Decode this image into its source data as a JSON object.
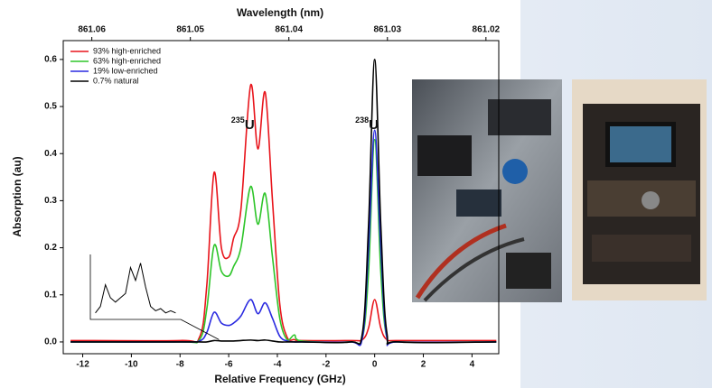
{
  "chart_data": {
    "type": "line",
    "x_label": "Relative Frequency (GHz)",
    "y_label": "Absorption (au)",
    "x2_label": "Wavelength (nm)",
    "xlim": [
      -12.8,
      5.1
    ],
    "xticks": [
      -12,
      -10,
      -8,
      -6,
      -4,
      -2,
      0,
      2,
      4
    ],
    "ylim": [
      -0.025,
      0.64
    ],
    "yticks": [
      {
        "value": 0,
        "label": "0.0"
      },
      0.1,
      0.2,
      0.3,
      0.4,
      0.5,
      0.6
    ],
    "x2lim": [
      861.0629,
      861.0187
    ],
    "x2ticks": [
      861.06,
      861.05,
      861.04,
      861.03,
      861.02
    ],
    "legend": "top-left",
    "x": [
      -12.5,
      -8,
      -7.2,
      -6.9,
      -6.6,
      -6.3,
      -6.0,
      -5.8,
      -5.5,
      -5.1,
      -4.8,
      -4.5,
      -4.2,
      -3.9,
      -3.6,
      -3.3,
      -3.0,
      -1,
      -0.5,
      -0.25,
      0,
      0.25,
      0.5,
      1,
      5
    ],
    "series": [
      {
        "name": "93% high-enriched",
        "color": "#e8141b",
        "values": [
          0.003,
          0.003,
          0.01,
          0.12,
          0.36,
          0.2,
          0.18,
          0.22,
          0.28,
          0.545,
          0.41,
          0.53,
          0.3,
          0.08,
          0.01,
          0.005,
          0.003,
          0.003,
          0.005,
          0.03,
          0.09,
          0.03,
          0.005,
          0.003,
          0.003
        ]
      },
      {
        "name": "63% high-enriched",
        "color": "#2ec52a",
        "values": [
          0,
          0,
          0.005,
          0.07,
          0.205,
          0.15,
          0.14,
          0.16,
          0.2,
          0.33,
          0.25,
          0.315,
          0.18,
          0.05,
          0.005,
          0.015,
          0.002,
          0,
          0.01,
          0.15,
          0.43,
          0.15,
          0.01,
          0,
          0
        ]
      },
      {
        "name": "19% low-enriched",
        "color": "#2a2ae0",
        "values": [
          0,
          0,
          0.002,
          0.02,
          0.063,
          0.04,
          0.035,
          0.04,
          0.055,
          0.09,
          0.06,
          0.083,
          0.05,
          0.012,
          0.002,
          0,
          0,
          0,
          0.01,
          0.2,
          0.45,
          0.2,
          0.01,
          0,
          0
        ]
      },
      {
        "name": "0.7% natural",
        "color": "#000000",
        "values": [
          0,
          0,
          0,
          0,
          0.003,
          0.002,
          0.002,
          0.002,
          0.003,
          0.004,
          0.003,
          0.004,
          0.002,
          0,
          0,
          0,
          0,
          0,
          0.02,
          0.25,
          0.6,
          0.25,
          0.02,
          0,
          0
        ]
      }
    ],
    "annotations": [
      {
        "mass": "235",
        "symbol": "U",
        "x": -5.9,
        "y": 0.46
      },
      {
        "mass": "238",
        "symbol": "U",
        "x": -0.8,
        "y": 0.46
      }
    ],
    "inset": {
      "xlim": [
        -7.2,
        -3.6
      ],
      "ylim": [
        0,
        3
      ],
      "x": [
        -7,
        -6.8,
        -6.6,
        -6.4,
        -6.2,
        -6.0,
        -5.8,
        -5.6,
        -5.4,
        -5.2,
        -5.0,
        -4.8,
        -4.6,
        -4.4,
        -4.2,
        -4.0,
        -3.8
      ],
      "values": [
        0.3,
        0.6,
        1.6,
        1.0,
        0.8,
        1.0,
        1.2,
        2.4,
        1.8,
        2.6,
        1.5,
        0.6,
        0.4,
        0.5,
        0.3,
        0.4,
        0.3
      ],
      "color": "#000000"
    }
  }
}
